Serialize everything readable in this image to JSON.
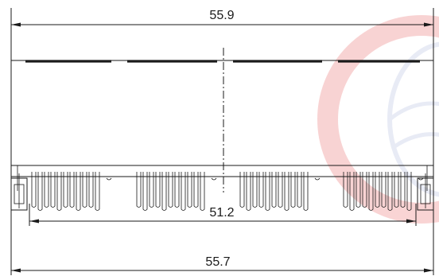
{
  "dimensions": {
    "top_width": "55.9",
    "inner_pitch": "51.2",
    "bottom_width": "55.7"
  },
  "watermark": {
    "ring_color": "#e23b3b",
    "globe_color": "#9aa6d6",
    "icon": "globe-logo-watermark"
  },
  "line_color": "#1a1a1a"
}
